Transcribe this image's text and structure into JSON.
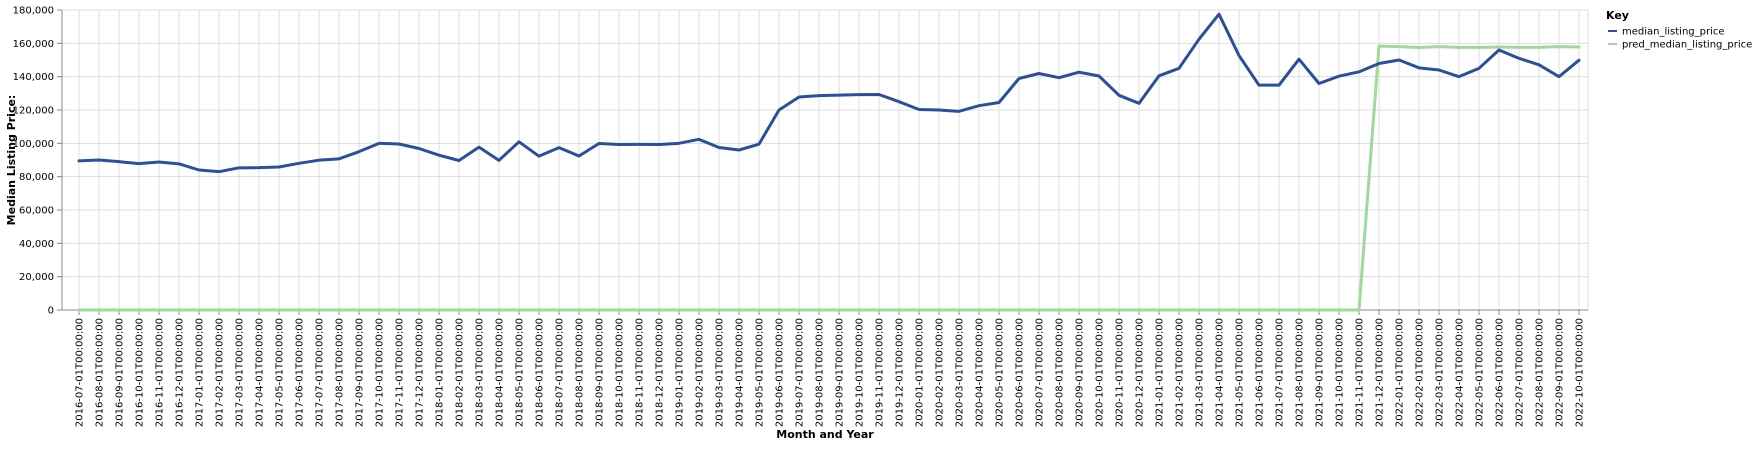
{
  "chart_data": {
    "type": "line",
    "xlabel": "Month and Year",
    "ylabel": "Median Listing Price:",
    "ylim": [
      0,
      180000
    ],
    "yticks": [
      0,
      20000,
      40000,
      60000,
      80000,
      100000,
      120000,
      140000,
      160000,
      180000
    ],
    "ytick_labels": [
      "0",
      "20,000",
      "40,000",
      "60,000",
      "80,000",
      "100,000",
      "120,000",
      "140,000",
      "160,000",
      "180,000"
    ],
    "grid": true,
    "legend": {
      "title": "Key",
      "placement": "top-right",
      "entries": [
        "median_listing_price",
        "pred_median_listing_price"
      ]
    },
    "categories": [
      "2016-07-01T00:00:00",
      "2016-08-01T00:00:00",
      "2016-09-01T00:00:00",
      "2016-10-01T00:00:00",
      "2016-11-01T00:00:00",
      "2016-12-01T00:00:00",
      "2017-01-01T00:00:00",
      "2017-02-01T00:00:00",
      "2017-03-01T00:00:00",
      "2017-04-01T00:00:00",
      "2017-05-01T00:00:00",
      "2017-06-01T00:00:00",
      "2017-07-01T00:00:00",
      "2017-08-01T00:00:00",
      "2017-09-01T00:00:00",
      "2017-10-01T00:00:00",
      "2017-11-01T00:00:00",
      "2017-12-01T00:00:00",
      "2018-01-01T00:00:00",
      "2018-02-01T00:00:00",
      "2018-03-01T00:00:00",
      "2018-04-01T00:00:00",
      "2018-05-01T00:00:00",
      "2018-06-01T00:00:00",
      "2018-07-01T00:00:00",
      "2018-08-01T00:00:00",
      "2018-09-01T00:00:00",
      "2018-10-01T00:00:00",
      "2018-11-01T00:00:00",
      "2018-12-01T00:00:00",
      "2019-01-01T00:00:00",
      "2019-02-01T00:00:00",
      "2019-03-01T00:00:00",
      "2019-04-01T00:00:00",
      "2019-05-01T00:00:00",
      "2019-06-01T00:00:00",
      "2019-07-01T00:00:00",
      "2019-08-01T00:00:00",
      "2019-09-01T00:00:00",
      "2019-10-01T00:00:00",
      "2019-11-01T00:00:00",
      "2019-12-01T00:00:00",
      "2020-01-01T00:00:00",
      "2020-02-01T00:00:00",
      "2020-03-01T00:00:00",
      "2020-04-01T00:00:00",
      "2020-05-01T00:00:00",
      "2020-06-01T00:00:00",
      "2020-07-01T00:00:00",
      "2020-08-01T00:00:00",
      "2020-09-01T00:00:00",
      "2020-10-01T00:00:00",
      "2020-11-01T00:00:00",
      "2020-12-01T00:00:00",
      "2021-01-01T00:00:00",
      "2021-02-01T00:00:00",
      "2021-03-01T00:00:00",
      "2021-04-01T00:00:00",
      "2021-05-01T00:00:00",
      "2021-06-01T00:00:00",
      "2021-07-01T00:00:00",
      "2021-08-01T00:00:00",
      "2021-09-01T00:00:00",
      "2021-10-01T00:00:00",
      "2021-11-01T00:00:00",
      "2021-12-01T00:00:00",
      "2022-01-01T00:00:00",
      "2022-02-01T00:00:00",
      "2022-03-01T00:00:00",
      "2022-04-01T00:00:00",
      "2022-05-01T00:00:00",
      "2022-06-01T00:00:00",
      "2022-07-01T00:00:00",
      "2022-08-01T00:00:00",
      "2022-09-01T00:00:00",
      "2022-10-01T00:00:00"
    ],
    "series": [
      {
        "name": "median_listing_price",
        "color": "#2c4f9a",
        "values": [
          89500,
          90000,
          89000,
          87800,
          88800,
          87700,
          84000,
          83000,
          85300,
          85400,
          85800,
          88000,
          89900,
          90700,
          95000,
          100000,
          99600,
          96900,
          92900,
          89700,
          97700,
          89800,
          100900,
          92300,
          97400,
          92400,
          99900,
          99300,
          99400,
          99300,
          100000,
          102400,
          97500,
          96000,
          99500,
          120000,
          127800,
          128600,
          128900,
          129200,
          129300,
          125000,
          120300,
          120000,
          119200,
          122600,
          124500,
          138900,
          141900,
          139400,
          142700,
          140400,
          128800,
          124000,
          140500,
          145000,
          162500,
          177500,
          152700,
          134900,
          134900,
          150500,
          135900,
          140300,
          142900,
          147900,
          150000,
          145300,
          144000,
          140000,
          145000,
          156000,
          151000,
          147100,
          140000,
          149900
        ]
      },
      {
        "name": "pred_median_listing_price",
        "color": "#a1d99b",
        "values": [
          0,
          0,
          0,
          0,
          0,
          0,
          0,
          0,
          0,
          0,
          0,
          0,
          0,
          0,
          0,
          0,
          0,
          0,
          0,
          0,
          0,
          0,
          0,
          0,
          0,
          0,
          0,
          0,
          0,
          0,
          0,
          0,
          0,
          0,
          0,
          0,
          0,
          0,
          0,
          0,
          0,
          0,
          0,
          0,
          0,
          0,
          0,
          0,
          0,
          0,
          0,
          0,
          0,
          0,
          0,
          0,
          0,
          0,
          0,
          0,
          0,
          0,
          0,
          0,
          0,
          158300,
          158000,
          157500,
          158000,
          157600,
          157600,
          157800,
          157600,
          157600,
          158000,
          157800
        ]
      }
    ]
  }
}
